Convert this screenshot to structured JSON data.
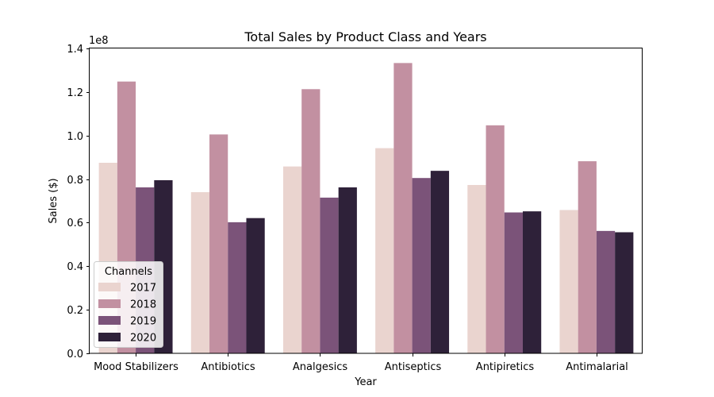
{
  "chart_data": {
    "type": "bar",
    "title": "Total Sales by Product Class and Years",
    "xlabel": "Year",
    "ylabel": "Sales ($)",
    "y_scale_label": "1e8",
    "ylim": [
      0,
      1.4
    ],
    "y_scale_factor": 100000000,
    "yticks": [
      0.0,
      0.2,
      0.4,
      0.6,
      0.8,
      1.0,
      1.2,
      1.4
    ],
    "ytick_labels": [
      "0.0",
      "0.2",
      "0.4",
      "0.6",
      "0.8",
      "1.0",
      "1.2",
      "1.4"
    ],
    "categories": [
      "Mood Stabilizers",
      "Antibiotics",
      "Analgesics",
      "Antiseptics",
      "Antipiretics",
      "Antimalarial"
    ],
    "legend": {
      "title": "Channels",
      "placement": "lower-left"
    },
    "grid": false,
    "series": [
      {
        "name": "2017",
        "color": "#ead4cf",
        "values": [
          0.875,
          0.74,
          0.858,
          0.942,
          0.773,
          0.658
        ]
      },
      {
        "name": "2018",
        "color": "#c290a1",
        "values": [
          1.248,
          1.005,
          1.213,
          1.333,
          1.047,
          0.882
        ]
      },
      {
        "name": "2019",
        "color": "#7b5379",
        "values": [
          0.762,
          0.602,
          0.715,
          0.805,
          0.647,
          0.562
        ]
      },
      {
        "name": "2020",
        "color": "#2e2139",
        "values": [
          0.795,
          0.621,
          0.762,
          0.838,
          0.652,
          0.556
        ]
      }
    ]
  }
}
